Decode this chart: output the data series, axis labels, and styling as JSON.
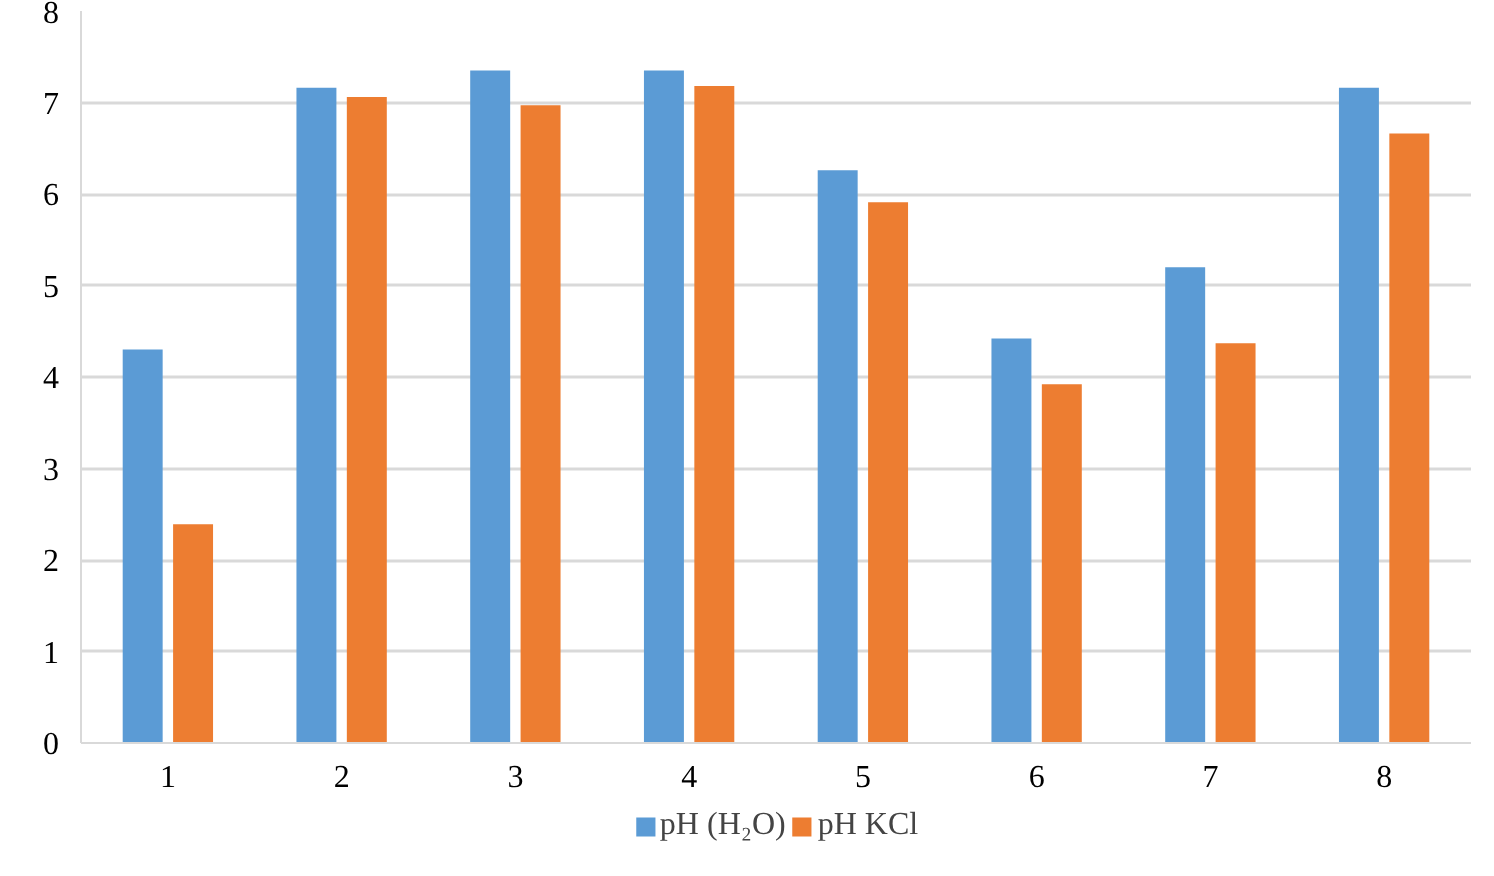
{
  "chart_data": {
    "type": "bar",
    "categories": [
      "1",
      "2",
      "3",
      "4",
      "5",
      "6",
      "7",
      "8"
    ],
    "series": [
      {
        "name": "pH (H₂O)",
        "color": "#5b9bd5",
        "values": [
          4.3,
          7.16,
          7.35,
          7.35,
          6.26,
          4.42,
          5.2,
          7.16
        ]
      },
      {
        "name": "pH KCl",
        "color": "#ed7d31",
        "values": [
          2.39,
          7.06,
          6.97,
          7.18,
          5.91,
          3.92,
          4.37,
          6.66
        ]
      }
    ],
    "ylim": [
      0,
      8
    ],
    "yticks": [
      0,
      1,
      2,
      3,
      4,
      5,
      6,
      7,
      8
    ],
    "grid": "y",
    "legend": "bottom"
  }
}
